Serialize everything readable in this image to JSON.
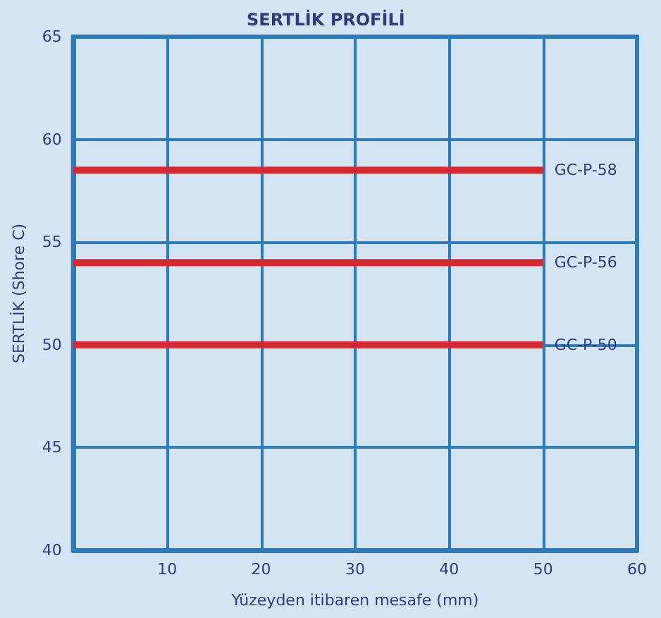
{
  "chart_data": {
    "type": "line",
    "title": "SERTLİK PROFİLİ",
    "xlabel": "Yüzeyden itibaren mesafe (mm)",
    "ylabel": "SERTLİK (Shore C)",
    "x": [
      0,
      50
    ],
    "series": [
      {
        "name": "GC-P-58",
        "color": "#d7282f",
        "values": [
          58.5,
          58.5
        ]
      },
      {
        "name": "GC-P-56",
        "color": "#d7282f",
        "values": [
          54,
          54
        ]
      },
      {
        "name": "GC-P-50",
        "color": "#d7282f",
        "values": [
          50,
          50
        ]
      }
    ],
    "xlim": [
      0,
      60
    ],
    "xticks": [
      {
        "value": 0,
        "label": null
      },
      10,
      20,
      30,
      40,
      50,
      60
    ],
    "ylim": [
      40,
      65
    ],
    "yticks": [
      40,
      45,
      50,
      55,
      60,
      65
    ],
    "grid": true,
    "marker": "none",
    "line_style": "solid",
    "legend": false
  }
}
